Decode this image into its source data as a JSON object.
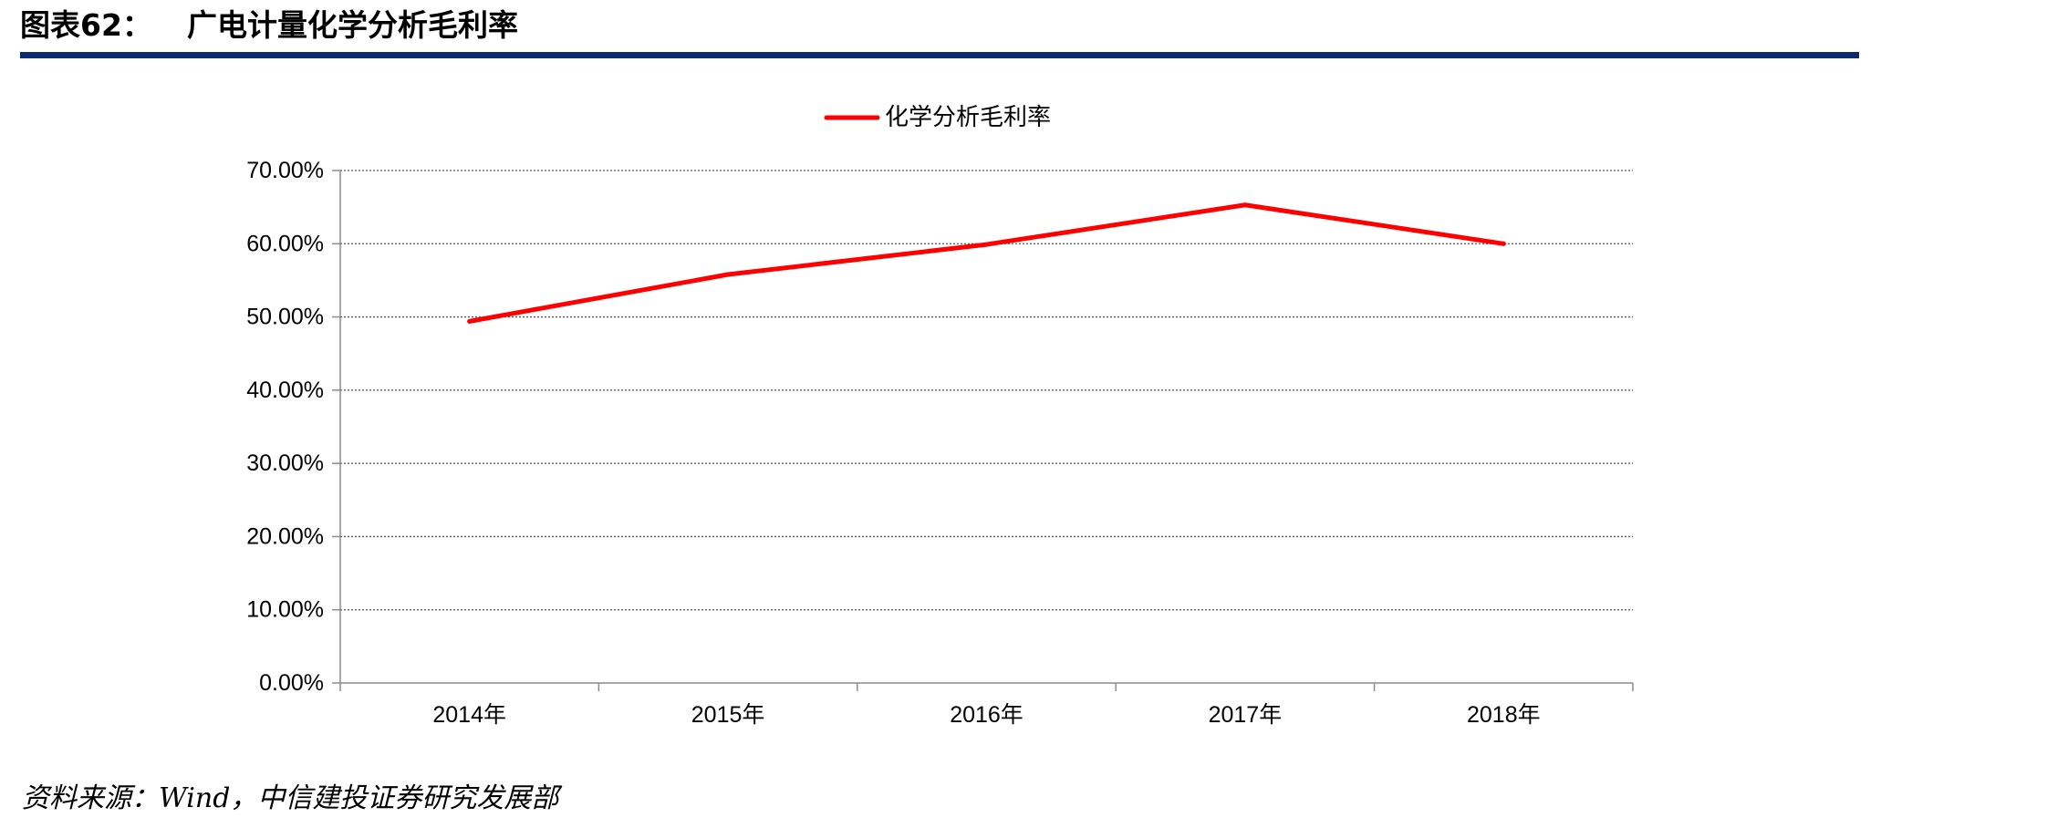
{
  "header": {
    "figure_label": "图表62：",
    "title": "广电计量化学分析毛利率",
    "rule_color": "#0c2a6e"
  },
  "chart_data": {
    "type": "line",
    "categories": [
      "2014年",
      "2015年",
      "2016年",
      "2017年",
      "2018年"
    ],
    "series": [
      {
        "name": "化学分析毛利率",
        "color": "#ff0000",
        "values": [
          49.4,
          55.8,
          59.9,
          65.3,
          60.0
        ]
      }
    ],
    "ylim": [
      0,
      70
    ],
    "yticks": [
      "0.00%",
      "10.00%",
      "20.00%",
      "30.00%",
      "40.00%",
      "50.00%",
      "60.00%",
      "70.00%"
    ],
    "y_tick_values": [
      0,
      10,
      20,
      30,
      40,
      50,
      60,
      70
    ],
    "grid": true,
    "legend_position": "top-center",
    "xlabel": "",
    "ylabel": ""
  },
  "footer": {
    "source": "资料来源：Wind，中信建投证券研究发展部"
  }
}
